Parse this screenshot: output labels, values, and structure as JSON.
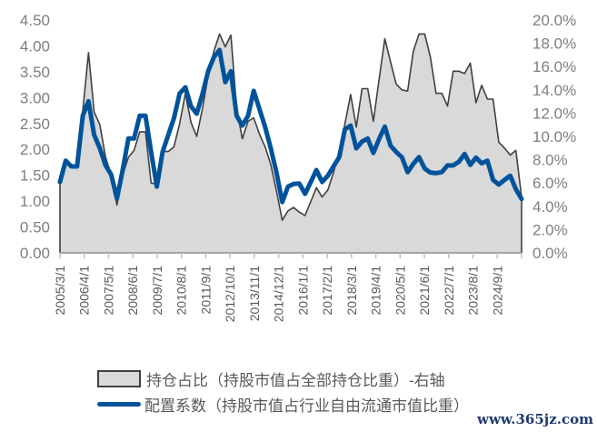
{
  "chart_data": {
    "type": "line",
    "x_tick_labels": [
      "2005/3/1",
      "2006/4/1",
      "2007/5/1",
      "2008/6/1",
      "2009/7/1",
      "2010/8/1",
      "2011/9/1",
      "2012/10/1",
      "2013/11/1",
      "2014/12/1",
      "2016/1/1",
      "2017/2/1",
      "2018/3/1",
      "2019/4/1",
      "2020/5/1",
      "2021/6/1",
      "2022/7/1",
      "2023/8/1",
      "2024/9/1"
    ],
    "y_left": {
      "range": [
        0,
        4.5
      ],
      "ticks": [
        "0.00",
        "0.50",
        "1.00",
        "1.50",
        "2.00",
        "2.50",
        "3.00",
        "3.50",
        "4.00",
        "4.50"
      ]
    },
    "y_right": {
      "range": [
        0,
        20
      ],
      "ticks": [
        "0.0%",
        "2.0%",
        "4.0%",
        "6.0%",
        "8.0%",
        "10.0%",
        "12.0%",
        "14.0%",
        "16.0%",
        "18.0%",
        "20.0%"
      ]
    },
    "grid": false,
    "legend_position": "bottom",
    "series": [
      {
        "name": "持仓占比（持股市值占全部持仓比重）-右轴",
        "type": "area",
        "axis": "right",
        "unit": "%",
        "color": "#d9d9d9",
        "stroke": "#404040",
        "values": [
          6.1,
          7.8,
          7.4,
          7.4,
          12.2,
          17.2,
          12.1,
          11.0,
          8.2,
          6.7,
          4.1,
          6.7,
          8.2,
          8.8,
          10.4,
          10.4,
          6.0,
          5.9,
          8.7,
          8.7,
          9.1,
          11.1,
          13.7,
          11.2,
          10.0,
          12.4,
          15.2,
          17.3,
          18.8,
          17.7,
          18.7,
          12.4,
          9.8,
          11.3,
          11.6,
          10.2,
          9.1,
          7.6,
          5.3,
          2.8,
          3.6,
          3.9,
          3.5,
          3.2,
          4.4,
          5.6,
          4.8,
          5.4,
          6.9,
          8.7,
          11.1,
          13.6,
          10.8,
          14.1,
          14.1,
          11.3,
          14.9,
          18.4,
          16.4,
          14.5,
          14.0,
          13.9,
          17.3,
          18.8,
          18.8,
          16.8,
          13.7,
          13.7,
          12.6,
          15.6,
          15.6,
          15.4,
          16.3,
          12.9,
          14.4,
          13.2,
          13.2,
          9.5,
          9.0,
          8.4,
          8.8,
          4.8
        ]
      },
      {
        "name": "配置系数（持股市值占行业自由流通市值比重）",
        "type": "line",
        "axis": "left",
        "color": "#00539b",
        "values": [
          1.37,
          1.78,
          1.67,
          1.67,
          2.65,
          2.93,
          2.28,
          2.02,
          1.69,
          1.51,
          1.05,
          1.6,
          2.21,
          2.21,
          2.65,
          2.65,
          1.95,
          1.28,
          1.95,
          2.28,
          2.6,
          3.08,
          3.2,
          2.83,
          2.69,
          3.07,
          3.51,
          3.78,
          3.92,
          3.3,
          3.51,
          2.65,
          2.46,
          2.65,
          3.13,
          2.78,
          2.43,
          2.02,
          1.55,
          0.98,
          1.28,
          1.33,
          1.34,
          1.14,
          1.37,
          1.6,
          1.37,
          1.49,
          1.67,
          1.85,
          2.39,
          2.46,
          2.02,
          2.15,
          2.21,
          1.93,
          2.2,
          2.44,
          2.07,
          1.95,
          1.85,
          1.56,
          1.72,
          1.85,
          1.63,
          1.55,
          1.54,
          1.56,
          1.69,
          1.69,
          1.76,
          1.91,
          1.7,
          1.84,
          1.73,
          1.78,
          1.41,
          1.32,
          1.41,
          1.49,
          1.23,
          1.04
        ]
      }
    ]
  },
  "legend": {
    "area_label": "持仓占比（持股市值占全部持仓比重）-右轴",
    "line_label": "配置系数（持股市值占行业自由流通市值比重）"
  },
  "watermark": "www.365jz.com"
}
